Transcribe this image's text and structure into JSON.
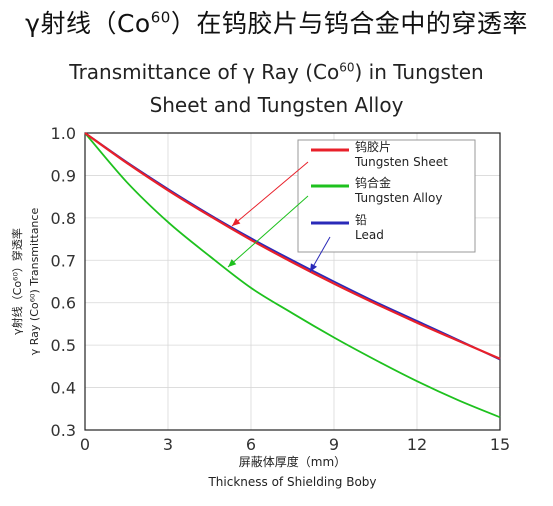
{
  "title_cn_prefix": "γ射线（Co",
  "title_cn_sup": "60",
  "title_cn_suffix": "）在钨胶片与钨合金中的穿透率",
  "title_en_line1_prefix": "Transmittance of γ Ray (Co",
  "title_en_line1_sup": "60",
  "title_en_line1_suffix": ") in Tungsten",
  "title_en_line2": "Sheet and Tungsten Alloy",
  "chart_data": {
    "type": "line",
    "xlabel_cn": "屏蔽体厚度（mm）",
    "xlabel_en": "Thickness of Shielding Boby",
    "ylabel_cn": "γ射线（Co⁶⁰）穿透率",
    "ylabel_en": "γ Ray (Co⁶⁰) Transmittance",
    "xlim": [
      0,
      15
    ],
    "ylim": [
      0.3,
      1.0
    ],
    "xticks": [
      0,
      3,
      6,
      9,
      12,
      15
    ],
    "yticks": [
      0.3,
      0.4,
      0.5,
      0.6,
      0.7,
      0.8,
      0.9,
      1.0
    ],
    "ytick_labels": [
      "0.3",
      "0.4",
      "0.5",
      "0.6",
      "0.7",
      "0.8",
      "0.9",
      "1.0"
    ],
    "grid": true,
    "legend_position": "top-right",
    "series": [
      {
        "name_cn": "钨胶片",
        "name_en": "Tungsten Sheet",
        "color": "#e8202a",
        "x": [
          0,
          1.5,
          3,
          4.5,
          6,
          7.5,
          9,
          10.5,
          12,
          13.5,
          15
        ],
        "values": [
          1.0,
          0.93,
          0.865,
          0.805,
          0.748,
          0.695,
          0.645,
          0.598,
          0.553,
          0.51,
          0.468
        ]
      },
      {
        "name_cn": "钨合金",
        "name_en": "Tungsten Alloy",
        "color": "#1ec11e",
        "x": [
          0,
          1.5,
          3,
          4.5,
          6,
          7.5,
          9,
          10.5,
          12,
          13.5,
          15
        ],
        "values": [
          1.0,
          0.885,
          0.79,
          0.71,
          0.635,
          0.575,
          0.518,
          0.465,
          0.415,
          0.37,
          0.33
        ]
      },
      {
        "name_cn": "铅",
        "name_en": "Lead",
        "color": "#2a2ab8",
        "x": [
          0,
          1.5,
          3,
          4.5,
          6,
          7.5,
          9,
          10.5,
          12,
          13.5,
          15
        ],
        "values": [
          1.0,
          0.932,
          0.868,
          0.808,
          0.752,
          0.7,
          0.65,
          0.602,
          0.557,
          0.512,
          0.466
        ]
      }
    ]
  }
}
